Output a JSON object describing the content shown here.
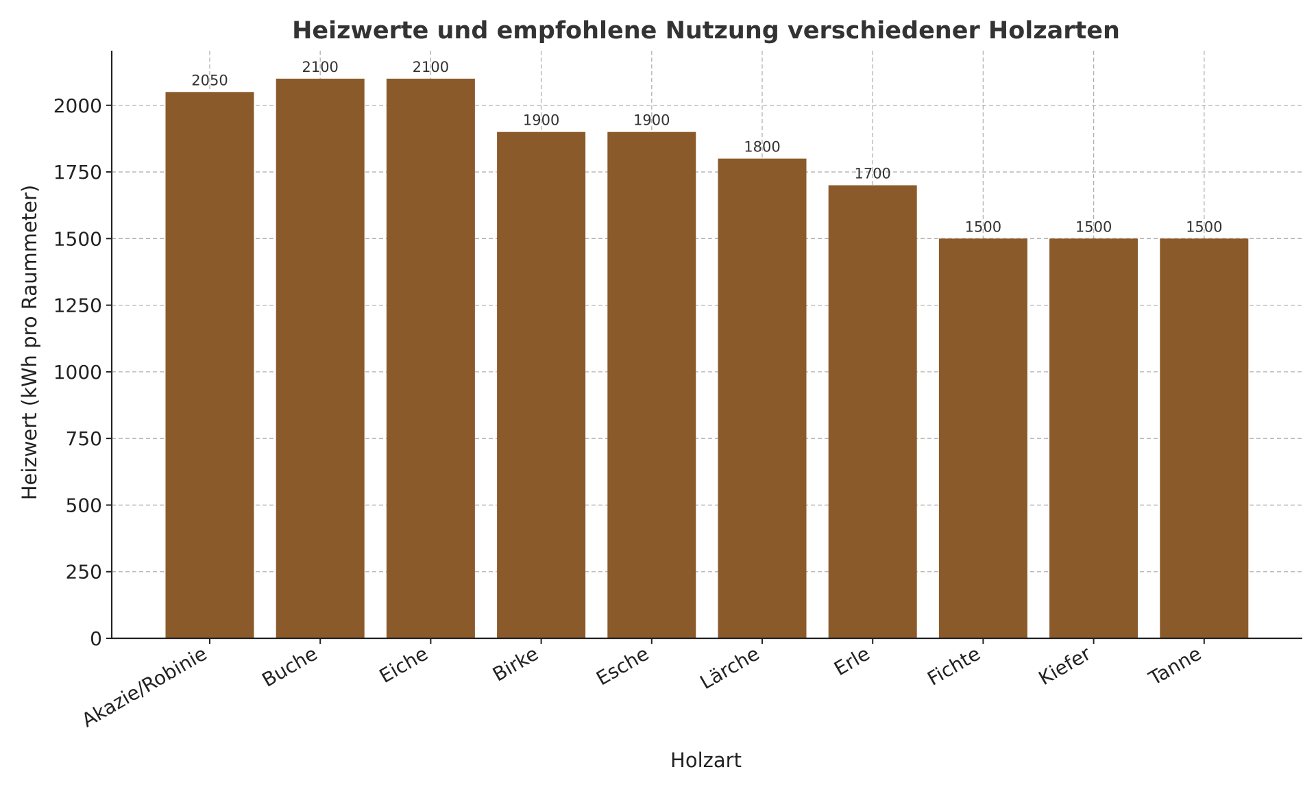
{
  "chart_data": {
    "type": "bar",
    "title": "Heizwerte und empfohlene Nutzung verschiedener Holzarten",
    "xlabel": "Holzart",
    "ylabel": "Heizwert (kWh pro Raummeter)",
    "categories": [
      "Akazie/Robinie",
      "Buche",
      "Eiche",
      "Birke",
      "Esche",
      "Lärche",
      "Erle",
      "Fichte",
      "Kiefer",
      "Tanne"
    ],
    "values": [
      2050,
      2100,
      2100,
      1900,
      1900,
      1800,
      1700,
      1500,
      1500,
      1500
    ],
    "yticks": [
      0,
      250,
      500,
      750,
      1000,
      1250,
      1500,
      1750,
      2000
    ],
    "ylim": [
      0,
      2205
    ],
    "grid": true,
    "bar_color": "#8B5A2B",
    "grid_color": "#b0b0b0"
  }
}
